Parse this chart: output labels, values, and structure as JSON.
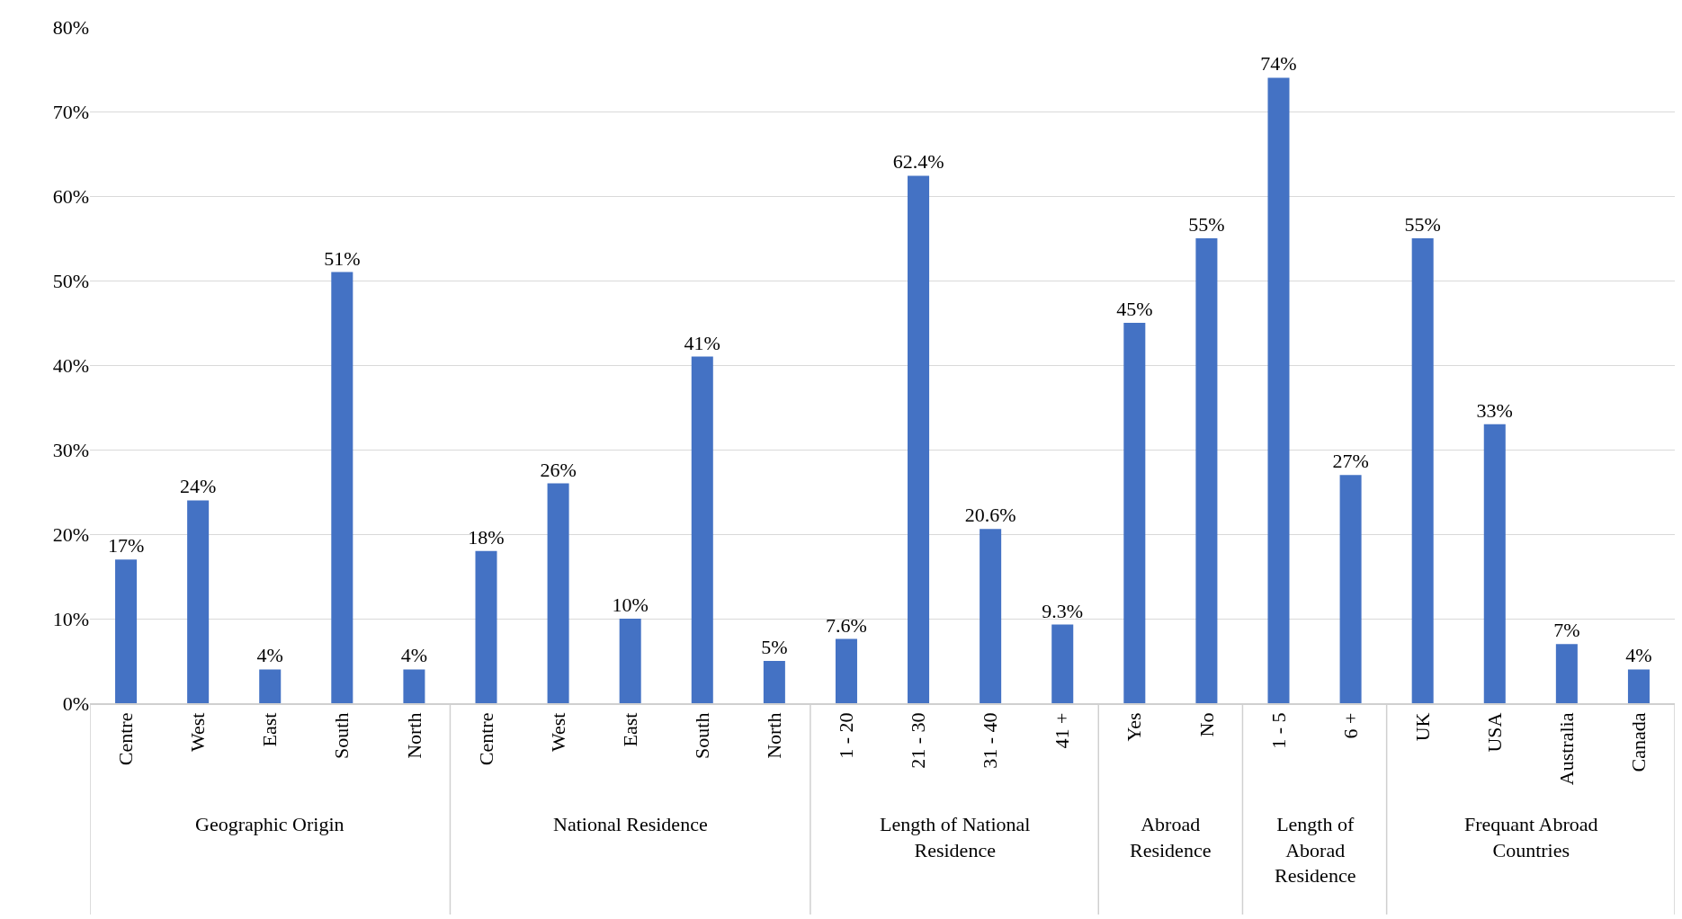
{
  "chart_data": {
    "type": "bar",
    "categories": [
      "Centre",
      "West",
      "East",
      "South",
      "North",
      "Centre",
      "West",
      "East",
      "South",
      "North",
      "1 - 20",
      "21 - 30",
      "31 - 40",
      "41 +",
      "Yes",
      "No",
      "1 - 5",
      "6 +",
      "UK",
      "USA",
      "Australia",
      "Canada"
    ],
    "values": [
      17,
      24,
      4,
      51,
      4,
      18,
      26,
      10,
      41,
      5,
      7.6,
      62.4,
      20.6,
      9.3,
      45,
      55,
      74,
      27,
      55,
      33,
      7,
      4
    ],
    "value_labels": [
      "17%",
      "24%",
      "4%",
      "51%",
      "4%",
      "18%",
      "26%",
      "10%",
      "41%",
      "5%",
      "7.6%",
      "62.4%",
      "20.6%",
      "9.3%",
      "45%",
      "55%",
      "74%",
      "27%",
      "55%",
      "33%",
      "7%",
      "4%"
    ],
    "color": "#4472c4",
    "ylim": [
      0,
      80
    ],
    "yticks": [
      {
        "value": 0,
        "label": "0%"
      },
      {
        "value": 10,
        "label": "10%"
      },
      {
        "value": 20,
        "label": "20%"
      },
      {
        "value": 30,
        "label": "30%"
      },
      {
        "value": 40,
        "label": "40%"
      },
      {
        "value": 50,
        "label": "50%"
      },
      {
        "value": 60,
        "label": "60%"
      },
      {
        "value": 70,
        "label": "70%"
      },
      {
        "value": 80,
        "label": "80%"
      }
    ],
    "grid": "y",
    "annotations": [
      "Geographic Origin",
      "National Residence",
      "Length of National Residence",
      "Abroad Residence",
      "Length of Aborad Residence",
      "Frequant Abroad Countries"
    ]
  }
}
